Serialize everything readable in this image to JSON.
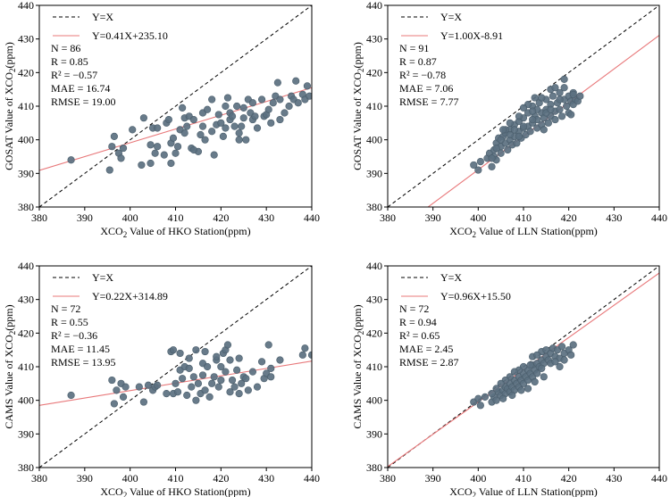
{
  "chart_data": [
    {
      "type": "scatter",
      "panel": "top-left",
      "xlabel": "XCO₂ Value of HKO Station(ppm)",
      "ylabel": "GOSAT Value of XCO₂(ppm)",
      "xlim": [
        380,
        440
      ],
      "ylim": [
        380,
        440
      ],
      "xticks": [
        "380",
        "390",
        "400",
        "410",
        "420",
        "430",
        "440"
      ],
      "yticks": [
        "380",
        "390",
        "400",
        "410",
        "420",
        "430",
        "440"
      ],
      "legend": [
        "Y=X",
        "Y=0.41X+235.10"
      ],
      "fit": {
        "slope": 0.41,
        "intercept": 235.1
      },
      "stats": [
        "N = 86",
        "R = 0.85",
        "R² = −0.57",
        "MAE = 16.74",
        "RMSE = 19.00"
      ],
      "points": [
        [
          387,
          394
        ],
        [
          395.5,
          391
        ],
        [
          396,
          398
        ],
        [
          396.5,
          401
        ],
        [
          397.5,
          396
        ],
        [
          398,
          394.5
        ],
        [
          398.5,
          397.5
        ],
        [
          400.5,
          403
        ],
        [
          402.5,
          392.5
        ],
        [
          403,
          406.5
        ],
        [
          404.5,
          398.5
        ],
        [
          404.5,
          393
        ],
        [
          405,
          403.5
        ],
        [
          405.5,
          396
        ],
        [
          406,
          398
        ],
        [
          407.5,
          395.5
        ],
        [
          408,
          405
        ],
        [
          408.5,
          406
        ],
        [
          409,
          399
        ],
        [
          409,
          393
        ],
        [
          409.5,
          400.5
        ],
        [
          410,
          396
        ],
        [
          410.5,
          398
        ],
        [
          411,
          403
        ],
        [
          411.5,
          409.5
        ],
        [
          412,
          402
        ],
        [
          412,
          406.5
        ],
        [
          412.5,
          404
        ],
        [
          413,
          407
        ],
        [
          413.5,
          397.5
        ],
        [
          414,
          406
        ],
        [
          415,
          396.5
        ],
        [
          415.5,
          401.5
        ],
        [
          416,
          404
        ],
        [
          416,
          408
        ],
        [
          416.5,
          400
        ],
        [
          417,
          409
        ],
        [
          418,
          402.5
        ],
        [
          418.5,
          395.5
        ],
        [
          419,
          404.5
        ],
        [
          419.5,
          407.5
        ],
        [
          420,
          405
        ],
        [
          420.5,
          401
        ],
        [
          421,
          410
        ],
        [
          421,
          403.5
        ],
        [
          421.5,
          412.5
        ],
        [
          422,
          408
        ],
        [
          422,
          406
        ],
        [
          422.5,
          407
        ],
        [
          423,
          404
        ],
        [
          423.5,
          410
        ],
        [
          424,
          400
        ],
        [
          424,
          402
        ],
        [
          424.5,
          404
        ],
        [
          425,
          406.5
        ],
        [
          425,
          409.5
        ],
        [
          426,
          412
        ],
        [
          426.5,
          408
        ],
        [
          427,
          406
        ],
        [
          427.5,
          407
        ],
        [
          428,
          403.5
        ],
        [
          429,
          412
        ],
        [
          429.5,
          407
        ],
        [
          430,
          407.5
        ],
        [
          430.5,
          409
        ],
        [
          431,
          405
        ],
        [
          431.5,
          411
        ],
        [
          432,
          413
        ],
        [
          433,
          412
        ],
        [
          433,
          406
        ],
        [
          434,
          408
        ],
        [
          435,
          410
        ],
        [
          435.5,
          413
        ],
        [
          436,
          412
        ],
        [
          436.5,
          417.5
        ],
        [
          437,
          411
        ],
        [
          438,
          413.5
        ],
        [
          438.5,
          412
        ],
        [
          439,
          416
        ],
        [
          439.5,
          413
        ],
        [
          432.5,
          417
        ],
        [
          427,
          411
        ],
        [
          425.5,
          400
        ],
        [
          418,
          412
        ],
        [
          414,
          397
        ],
        [
          406,
          403.5
        ]
      ]
    },
    {
      "type": "scatter",
      "panel": "top-right",
      "xlabel": "XCO₂ Value of LLN Station(ppm)",
      "ylabel": "GOSAT Value of XCO₂(ppm)",
      "xlim": [
        380,
        440
      ],
      "ylim": [
        380,
        440
      ],
      "xticks": [
        "380",
        "390",
        "400",
        "410",
        "420",
        "430",
        "440"
      ],
      "yticks": [
        "380",
        "390",
        "400",
        "410",
        "420",
        "430",
        "440"
      ],
      "legend": [
        "Y=X",
        "Y=1.00X-8.91"
      ],
      "fit": {
        "slope": 1.0,
        "intercept": -8.91
      },
      "stats": [
        "N = 91",
        "R = 0.87",
        "R² = −0.78",
        "MAE = 7.06",
        "RMSE = 7.77"
      ],
      "points": [
        [
          399,
          392.5
        ],
        [
          400,
          391
        ],
        [
          400.5,
          393.5
        ],
        [
          402,
          394.5
        ],
        [
          402.5,
          396
        ],
        [
          403,
          392
        ],
        [
          403.5,
          397
        ],
        [
          403.5,
          395
        ],
        [
          404,
          399
        ],
        [
          404,
          394
        ],
        [
          404.5,
          400.5
        ],
        [
          405,
          398
        ],
        [
          405,
          396
        ],
        [
          405.5,
          401
        ],
        [
          406,
          402
        ],
        [
          406,
          399
        ],
        [
          406.5,
          397
        ],
        [
          407,
          400
        ],
        [
          407,
          403
        ],
        [
          407.5,
          398.5
        ],
        [
          408,
          401
        ],
        [
          408,
          404.5
        ],
        [
          408.5,
          399
        ],
        [
          409,
          402.5
        ],
        [
          409,
          405.5
        ],
        [
          409.5,
          400.5
        ],
        [
          410,
          403.5
        ],
        [
          410,
          406.5
        ],
        [
          410.5,
          401.5
        ],
        [
          411,
          404
        ],
        [
          411,
          408
        ],
        [
          411.5,
          402.5
        ],
        [
          412,
          405
        ],
        [
          412,
          410
        ],
        [
          412.5,
          407
        ],
        [
          413,
          403.5
        ],
        [
          413,
          406
        ],
        [
          413.5,
          411
        ],
        [
          414,
          408
        ],
        [
          414,
          404.5
        ],
        [
          414.5,
          406.5
        ],
        [
          415,
          409
        ],
        [
          415,
          412
        ],
        [
          415.5,
          405
        ],
        [
          416,
          407
        ],
        [
          416,
          410.5
        ],
        [
          416.5,
          413
        ],
        [
          417,
          408.5
        ],
        [
          417,
          406
        ],
        [
          417.5,
          411
        ],
        [
          418,
          414
        ],
        [
          418,
          409
        ],
        [
          418.5,
          407
        ],
        [
          419,
          412
        ],
        [
          419,
          415.5
        ],
        [
          419.5,
          410
        ],
        [
          420,
          413
        ],
        [
          420,
          408
        ],
        [
          420.5,
          411.5
        ],
        [
          421,
          414
        ],
        [
          421,
          410.5
        ],
        [
          421.5,
          412
        ],
        [
          422,
          411.5
        ],
        [
          422.5,
          413
        ],
        [
          416,
          415
        ],
        [
          413,
          409
        ],
        [
          411,
          410.5
        ],
        [
          410,
          409.5
        ],
        [
          409,
          407
        ],
        [
          408,
          403
        ],
        [
          407,
          405
        ],
        [
          406,
          403
        ],
        [
          405,
          400
        ],
        [
          404,
          397.5
        ],
        [
          403,
          394.5
        ],
        [
          412,
          408.5
        ],
        [
          414,
          412.5
        ],
        [
          415,
          408
        ],
        [
          417,
          415.5
        ],
        [
          419,
          418
        ],
        [
          421,
          413.5
        ],
        [
          418,
          412
        ],
        [
          416,
          409
        ],
        [
          412,
          406
        ],
        [
          410,
          404
        ],
        [
          409,
          401
        ],
        [
          407,
          401.5
        ],
        [
          405.5,
          403
        ],
        [
          412.5,
          412.5
        ],
        [
          414.5,
          403
        ],
        [
          420.5,
          407.5
        ]
      ]
    },
    {
      "type": "scatter",
      "panel": "bottom-left",
      "xlabel": "XCO₂ Value of HKO Station(ppm)",
      "ylabel": "CAMS Value of XCO₂(ppm)",
      "xlim": [
        380,
        440
      ],
      "ylim": [
        380,
        440
      ],
      "xticks": [
        "380",
        "390",
        "400",
        "410",
        "420",
        "430",
        "440"
      ],
      "yticks": [
        "380",
        "390",
        "400",
        "410",
        "420",
        "430",
        "440"
      ],
      "legend": [
        "Y=X",
        "Y=0.22X+314.89"
      ],
      "fit": {
        "slope": 0.22,
        "intercept": 314.89
      },
      "stats": [
        "N = 72",
        "R = 0.55",
        "R² = −0.36",
        "MAE = 11.45",
        "RMSE = 13.95"
      ],
      "points": [
        [
          387,
          401.5
        ],
        [
          396,
          406
        ],
        [
          396.5,
          399
        ],
        [
          397,
          403
        ],
        [
          398,
          405
        ],
        [
          398.5,
          401
        ],
        [
          399,
          404
        ],
        [
          402,
          404
        ],
        [
          403,
          399.5
        ],
        [
          404,
          404.5
        ],
        [
          405,
          403
        ],
        [
          405.5,
          404
        ],
        [
          406,
          404.5
        ],
        [
          409,
          414.5
        ],
        [
          409.5,
          415
        ],
        [
          409.5,
          402
        ],
        [
          410,
          405
        ],
        [
          410.5,
          402.5
        ],
        [
          411,
          409
        ],
        [
          411.5,
          406.5
        ],
        [
          412,
          410
        ],
        [
          412.5,
          401.5
        ],
        [
          413,
          409.5
        ],
        [
          413,
          412.5
        ],
        [
          413.5,
          404
        ],
        [
          414,
          407
        ],
        [
          414.5,
          400
        ],
        [
          415,
          405
        ],
        [
          415.5,
          402
        ],
        [
          416,
          411
        ],
        [
          416,
          407.5
        ],
        [
          416.5,
          403
        ],
        [
          417,
          410
        ],
        [
          417.5,
          401
        ],
        [
          418,
          405
        ],
        [
          418.5,
          407
        ],
        [
          419,
          412
        ],
        [
          419.5,
          404
        ],
        [
          420,
          406
        ],
        [
          420.5,
          414
        ],
        [
          421,
          415
        ],
        [
          421,
          408.5
        ],
        [
          421.5,
          416.5
        ],
        [
          422,
          412
        ],
        [
          422.5,
          406
        ],
        [
          423,
          404
        ],
        [
          423.5,
          409
        ],
        [
          424,
          412.5
        ],
        [
          424,
          402
        ],
        [
          424.5,
          405
        ],
        [
          425,
          407
        ],
        [
          425.5,
          406.5
        ],
        [
          426,
          403
        ],
        [
          427,
          408.5
        ],
        [
          428,
          404
        ],
        [
          429,
          411.5
        ],
        [
          429.5,
          406.5
        ],
        [
          430,
          408
        ],
        [
          430.5,
          416.5
        ],
        [
          431,
          409.5
        ],
        [
          431,
          407
        ],
        [
          433,
          412
        ],
        [
          438,
          413.5
        ],
        [
          438.5,
          415.5
        ],
        [
          440,
          413.5
        ],
        [
          414.5,
          415
        ],
        [
          411,
          414
        ],
        [
          419,
          413
        ],
        [
          416.5,
          414.5
        ],
        [
          420,
          410
        ],
        [
          408,
          402
        ],
        [
          422,
          402.5
        ]
      ]
    },
    {
      "type": "scatter",
      "panel": "bottom-right",
      "xlabel": "XCO₂ Value of LLN Station(ppm)",
      "ylabel": "CAMS Value of XCO₂(ppm)",
      "xlim": [
        380,
        440
      ],
      "ylim": [
        380,
        440
      ],
      "xticks": [
        "380",
        "390",
        "400",
        "410",
        "420",
        "430",
        "440"
      ],
      "yticks": [
        "380",
        "390",
        "400",
        "410",
        "420",
        "430",
        "440"
      ],
      "legend": [
        "Y=X",
        "Y=0.96X+15.50"
      ],
      "fit": {
        "slope": 0.96,
        "intercept": 15.5
      },
      "stats": [
        "N = 72",
        "R = 0.94",
        "R² = 0.65",
        "MAE = 2.45",
        "RMSE = 2.87"
      ],
      "points": [
        [
          399,
          399.5
        ],
        [
          400,
          400.5
        ],
        [
          400.5,
          398.5
        ],
        [
          401.5,
          401
        ],
        [
          403,
          399.5
        ],
        [
          403.5,
          401
        ],
        [
          404,
          400
        ],
        [
          404.5,
          402.5
        ],
        [
          405,
          401.5
        ],
        [
          405.5,
          403
        ],
        [
          406,
          402
        ],
        [
          406,
          404
        ],
        [
          406.5,
          403.5
        ],
        [
          407,
          402.5
        ],
        [
          407,
          405
        ],
        [
          407.5,
          404
        ],
        [
          408,
          403
        ],
        [
          408,
          406
        ],
        [
          408.5,
          405
        ],
        [
          409,
          404
        ],
        [
          409,
          407
        ],
        [
          409.5,
          406
        ],
        [
          410,
          405
        ],
        [
          410,
          408
        ],
        [
          410.5,
          407
        ],
        [
          411,
          406
        ],
        [
          411,
          409
        ],
        [
          411.5,
          408
        ],
        [
          412,
          407
        ],
        [
          412,
          410.5
        ],
        [
          412.5,
          409
        ],
        [
          413,
          411
        ],
        [
          413,
          408
        ],
        [
          413.5,
          410
        ],
        [
          414,
          412
        ],
        [
          414,
          414.5
        ],
        [
          414.5,
          411
        ],
        [
          415,
          413
        ],
        [
          415,
          415
        ],
        [
          415.5,
          412
        ],
        [
          416,
          414
        ],
        [
          416.5,
          415.5
        ],
        [
          417,
          413
        ],
        [
          417.5,
          415
        ],
        [
          418,
          412.5
        ],
        [
          418.5,
          416
        ],
        [
          419,
          414
        ],
        [
          420,
          415
        ],
        [
          421,
          416.5
        ],
        [
          411.5,
          410.5
        ],
        [
          410,
          410
        ],
        [
          409,
          409
        ],
        [
          408,
          408.5
        ],
        [
          407,
          407
        ],
        [
          406,
          406
        ],
        [
          405,
          405
        ],
        [
          404,
          403.5
        ],
        [
          403,
          402
        ],
        [
          412,
          413
        ],
        [
          413,
          413.5
        ],
        [
          414,
          409.5
        ],
        [
          416,
          411
        ],
        [
          417,
          411.5
        ],
        [
          418,
          410
        ],
        [
          419,
          412
        ],
        [
          420.5,
          413.5
        ],
        [
          405.5,
          400.5
        ],
        [
          407.5,
          401.5
        ],
        [
          409.5,
          403
        ],
        [
          411,
          403.5
        ],
        [
          412.5,
          405.5
        ],
        [
          414.5,
          407
        ]
      ]
    }
  ]
}
